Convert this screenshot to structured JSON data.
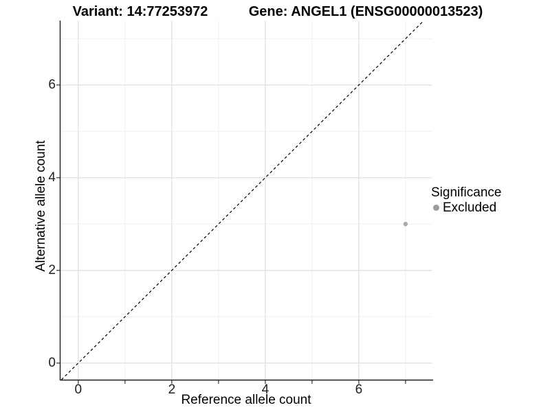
{
  "titles": {
    "variant": "Variant: 14:77253972",
    "gene": "Gene: ANGEL1 (ENSG00000013523)"
  },
  "chart_data": {
    "type": "scatter",
    "xlabel": "Reference allele count",
    "ylabel": "Alternative allele count",
    "xlim": [
      -0.38,
      7.56
    ],
    "ylim": [
      -0.36,
      7.39
    ],
    "x_major_ticks": [
      0,
      2,
      4,
      6
    ],
    "y_major_ticks": [
      0,
      2,
      4,
      6
    ],
    "x_axis_tick_marks": [
      0,
      1,
      2,
      3,
      4,
      5,
      6,
      7
    ],
    "x_minor_gridlines": [
      1,
      3,
      5,
      7
    ],
    "y_minor_gridlines": [
      1,
      3,
      5,
      7
    ],
    "grid": true,
    "reference_line": {
      "type": "identity",
      "slope": 1,
      "intercept": 0,
      "style": "dashed",
      "color": "#000000"
    },
    "series": [
      {
        "name": "Excluded",
        "color": "#a9a9a9",
        "points": [
          {
            "x": 7,
            "y": 3
          }
        ]
      }
    ],
    "legend": {
      "title": "Significance",
      "position": "right",
      "entries": [
        {
          "label": "Excluded",
          "color": "#9c9c9c"
        }
      ]
    }
  },
  "colors": {
    "background": "#ffffff",
    "major_grid": "#e3e3e3",
    "minor_grid": "#f0f0f0",
    "axis_line": "#1a1a1a",
    "point": "#a9a9a9"
  }
}
